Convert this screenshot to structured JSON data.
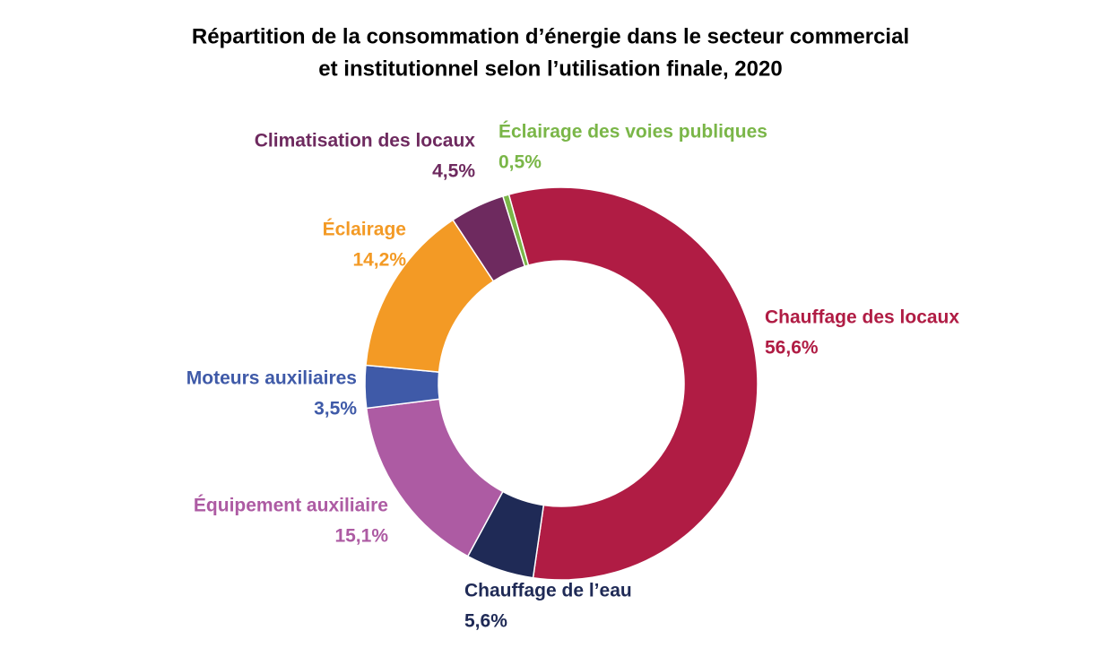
{
  "chart_data": {
    "type": "donut",
    "title": [
      "Répartition de la consommation d’énergie dans le secteur commercial",
      "et institutionnel selon l’utilisation finale, 2020"
    ],
    "categories": [
      "Chauffage des locaux",
      "Chauffage de l’eau",
      "Équipement auxiliaire",
      "Moteurs auxiliaires",
      "Éclairage",
      "Climatisation des locaux",
      "Éclairage des voies publiques"
    ],
    "values": [
      56.6,
      5.6,
      15.1,
      3.5,
      14.2,
      4.5,
      0.5
    ],
    "value_labels": [
      "56,6%",
      "5,6%",
      "15,1%",
      "3,5%",
      "14,2%",
      "4,5%",
      "0,5%"
    ],
    "colors": [
      "#b01c44",
      "#1f2a56",
      "#ad5ba3",
      "#3f5aa8",
      "#f39a25",
      "#6e2a5f",
      "#7ab648"
    ]
  }
}
